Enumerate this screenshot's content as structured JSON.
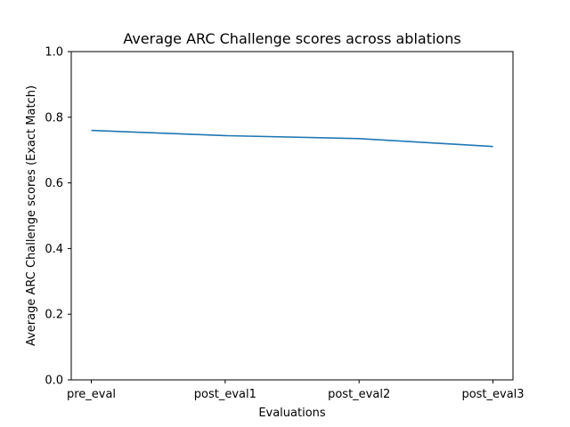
{
  "chart_data": {
    "type": "line",
    "title": "Average ARC Challenge scores across ablations",
    "xlabel": "Evaluations",
    "ylabel": "Average ARC Challenge scores (Exact Match)",
    "categories": [
      "pre_eval",
      "post_eval1",
      "post_eval2",
      "post_eval3"
    ],
    "series": [
      {
        "values": [
          0.76,
          0.744,
          0.735,
          0.711
        ],
        "color": "#1f77b4"
      }
    ],
    "ylim": [
      0,
      1.0
    ],
    "yticks": [
      "0.0",
      "0.2",
      "0.4",
      "0.6",
      "0.8",
      "1.0"
    ],
    "yticks_values": [
      0,
      0.2,
      0.4,
      0.6,
      0.8,
      1.0
    ],
    "grid": false,
    "legend": false
  }
}
